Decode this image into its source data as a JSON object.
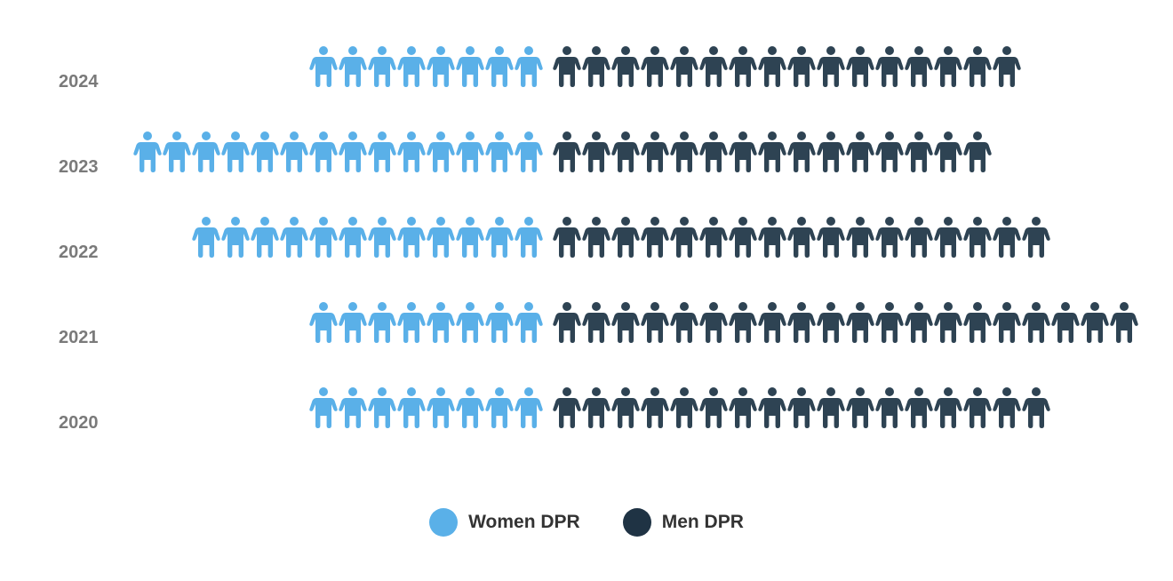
{
  "chart_data": {
    "type": "pictogram",
    "categories": [
      "2024",
      "2023",
      "2022",
      "2021",
      "2020"
    ],
    "series": [
      {
        "name": "Women DPR",
        "color": "#5ab0e8",
        "values": [
          8,
          14,
          12,
          8,
          8
        ]
      },
      {
        "name": "Men DPR",
        "color": "#2e4353",
        "values": [
          16,
          15,
          17,
          20,
          17
        ]
      }
    ],
    "legend_position": "bottom-center"
  },
  "legend": {
    "items": [
      {
        "label": "Women DPR",
        "color": "#5ab0e8"
      },
      {
        "label": "Men DPR",
        "color": "#1f3344"
      }
    ]
  }
}
